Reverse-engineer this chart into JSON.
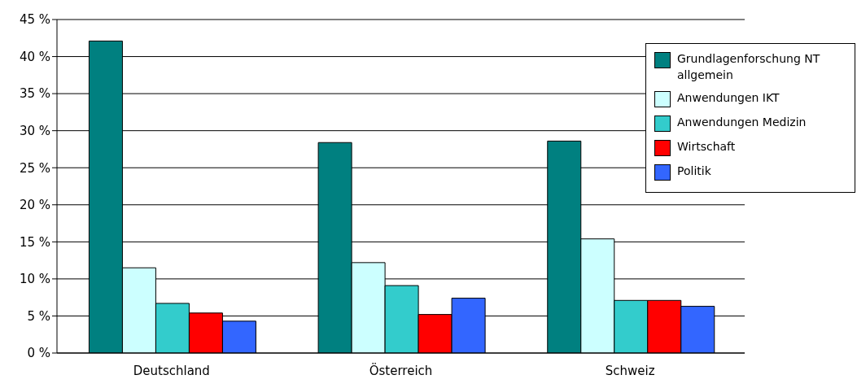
{
  "chart_data": {
    "type": "bar",
    "categories": [
      "Deutschland",
      "Österreich",
      "Schweiz"
    ],
    "series": [
      {
        "name": "Grundlagenforschung NT allgemein",
        "color": "#008080",
        "values": [
          42.1,
          28.4,
          28.6
        ]
      },
      {
        "name": "Anwendungen IKT",
        "color": "#ccffff",
        "values": [
          11.5,
          12.2,
          15.4
        ]
      },
      {
        "name": "Anwendungen Medizin",
        "color": "#33cccc",
        "values": [
          6.7,
          9.1,
          7.1
        ]
      },
      {
        "name": "Wirtschaft",
        "color": "#ff0000",
        "values": [
          5.4,
          5.2,
          7.1
        ]
      },
      {
        "name": "Politik",
        "color": "#3366ff",
        "values": [
          4.3,
          7.4,
          6.3
        ]
      }
    ],
    "ylim": [
      0,
      45
    ],
    "yticks": [
      {
        "value": 0,
        "label": "0 %"
      },
      {
        "value": 5,
        "label": "5 %"
      },
      {
        "value": 10,
        "label": "10 %"
      },
      {
        "value": 15,
        "label": "15 %"
      },
      {
        "value": 20,
        "label": "20 %"
      },
      {
        "value": 25,
        "label": "25 %"
      },
      {
        "value": 30,
        "label": "30 %"
      },
      {
        "value": 35,
        "label": "35 %"
      },
      {
        "value": 40,
        "label": "40 %"
      },
      {
        "value": 45,
        "label": "45 %"
      }
    ],
    "grid": "y",
    "legend": "top right"
  }
}
